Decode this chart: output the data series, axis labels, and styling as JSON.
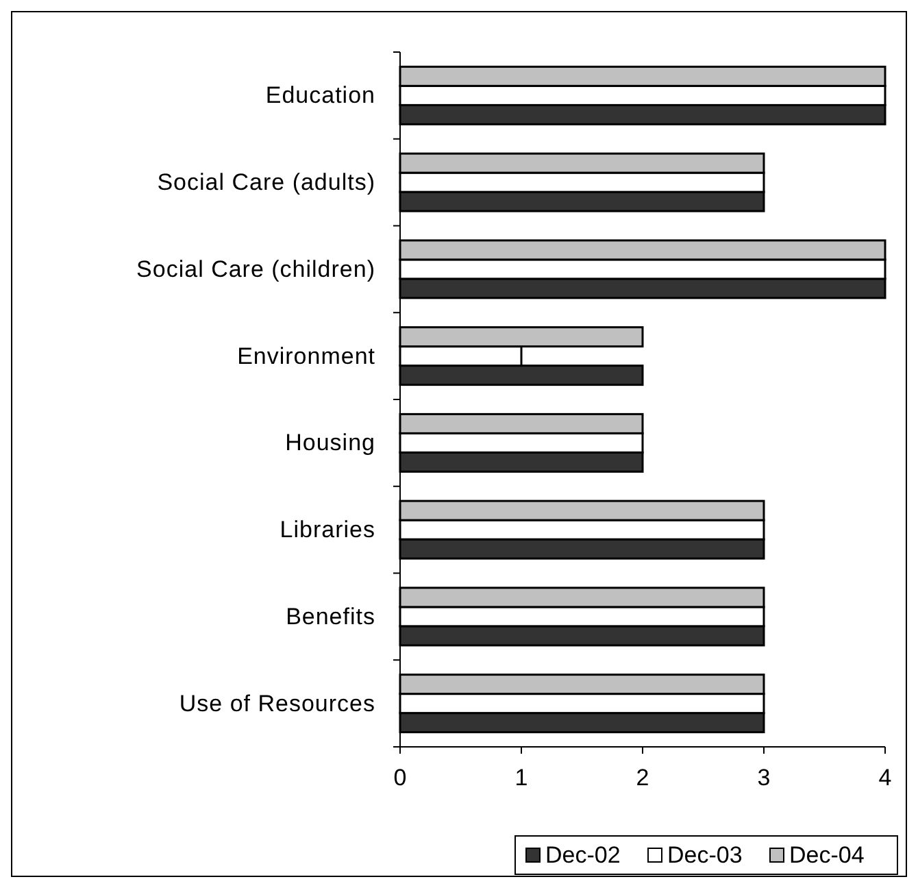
{
  "chart_data": {
    "type": "bar",
    "orientation": "horizontal",
    "categories": [
      "Education",
      "Social Care (adults)",
      "Social Care (children)",
      "Environment",
      "Housing",
      "Libraries",
      "Benefits",
      "Use of Resources"
    ],
    "series": [
      {
        "name": "Dec-02",
        "color": "#333333",
        "values": [
          4,
          3,
          4,
          2,
          2,
          3,
          3,
          3
        ]
      },
      {
        "name": "Dec-03",
        "color": "#ffffff",
        "values": [
          4,
          3,
          4,
          1,
          2,
          3,
          3,
          3
        ]
      },
      {
        "name": "Dec-04",
        "color": "#c0c0c0",
        "values": [
          4,
          3,
          4,
          2,
          2,
          3,
          3,
          3
        ]
      }
    ],
    "xlim": [
      0,
      4
    ],
    "xticks": [
      0,
      1,
      2,
      3,
      4
    ],
    "grid": false,
    "legend": "bottom"
  }
}
